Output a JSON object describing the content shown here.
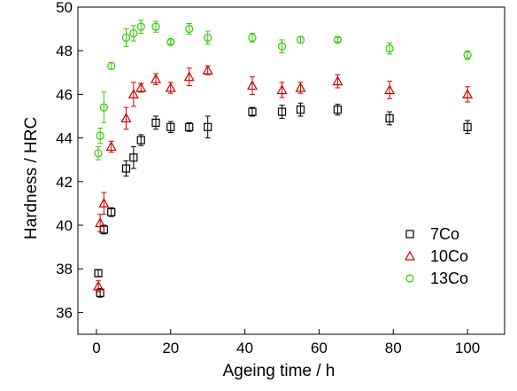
{
  "chart_data": {
    "type": "scatter",
    "xlabel": "Ageing time / h",
    "ylabel": "Hardness / HRC",
    "xlim": [
      -5,
      110
    ],
    "ylim": [
      35,
      50
    ],
    "xticks": [
      0,
      20,
      40,
      60,
      80,
      100
    ],
    "yticks": [
      36,
      38,
      40,
      42,
      44,
      46,
      48,
      50
    ],
    "grid": false,
    "legend": "bottom-right",
    "series": [
      {
        "name": "7Co",
        "marker": "square",
        "color": "#000000",
        "points": [
          {
            "x": 0.5,
            "y": 37.8,
            "err": 0.15
          },
          {
            "x": 1,
            "y": 36.9,
            "err": 0.2
          },
          {
            "x": 2,
            "y": 39.8,
            "err": 0.2
          },
          {
            "x": 4,
            "y": 40.6,
            "err": 0.2
          },
          {
            "x": 8,
            "y": 42.6,
            "err": 0.35
          },
          {
            "x": 10,
            "y": 43.1,
            "err": 0.5
          },
          {
            "x": 12,
            "y": 43.9,
            "err": 0.25
          },
          {
            "x": 16,
            "y": 44.7,
            "err": 0.3
          },
          {
            "x": 20,
            "y": 44.5,
            "err": 0.25
          },
          {
            "x": 25,
            "y": 44.5,
            "err": 0.2
          },
          {
            "x": 30,
            "y": 44.5,
            "err": 0.5
          },
          {
            "x": 42,
            "y": 45.2,
            "err": 0.2
          },
          {
            "x": 50,
            "y": 45.2,
            "err": 0.3
          },
          {
            "x": 55,
            "y": 45.3,
            "err": 0.3
          },
          {
            "x": 65,
            "y": 45.3,
            "err": 0.25
          },
          {
            "x": 79,
            "y": 44.9,
            "err": 0.3
          },
          {
            "x": 100,
            "y": 44.5,
            "err": 0.3
          }
        ]
      },
      {
        "name": "10Co",
        "marker": "triangle",
        "color": "#cc0000",
        "points": [
          {
            "x": 0.5,
            "y": 37.2,
            "err": 0.25
          },
          {
            "x": 1,
            "y": 40.1,
            "err": 0.4
          },
          {
            "x": 2,
            "y": 41.0,
            "err": 0.5
          },
          {
            "x": 4,
            "y": 43.6,
            "err": 0.25
          },
          {
            "x": 8,
            "y": 44.9,
            "err": 0.5
          },
          {
            "x": 10,
            "y": 46.0,
            "err": 0.55
          },
          {
            "x": 12,
            "y": 46.3,
            "err": 0.2
          },
          {
            "x": 16,
            "y": 46.7,
            "err": 0.25
          },
          {
            "x": 20,
            "y": 46.3,
            "err": 0.25
          },
          {
            "x": 25,
            "y": 46.8,
            "err": 0.4
          },
          {
            "x": 30,
            "y": 47.1,
            "err": 0.2
          },
          {
            "x": 42,
            "y": 46.4,
            "err": 0.4
          },
          {
            "x": 50,
            "y": 46.2,
            "err": 0.35
          },
          {
            "x": 55,
            "y": 46.3,
            "err": 0.25
          },
          {
            "x": 65,
            "y": 46.6,
            "err": 0.3
          },
          {
            "x": 79,
            "y": 46.2,
            "err": 0.4
          },
          {
            "x": 100,
            "y": 46.0,
            "err": 0.35
          }
        ]
      },
      {
        "name": "13Co",
        "marker": "circle",
        "color": "#33cc00",
        "points": [
          {
            "x": 0.5,
            "y": 43.3,
            "err": 0.3
          },
          {
            "x": 1,
            "y": 44.1,
            "err": 0.35
          },
          {
            "x": 2,
            "y": 45.4,
            "err": 0.7
          },
          {
            "x": 4,
            "y": 47.3,
            "err": 0.15
          },
          {
            "x": 8,
            "y": 48.6,
            "err": 0.4
          },
          {
            "x": 10,
            "y": 48.8,
            "err": 0.35
          },
          {
            "x": 12,
            "y": 49.1,
            "err": 0.3
          },
          {
            "x": 16,
            "y": 49.1,
            "err": 0.25
          },
          {
            "x": 20,
            "y": 48.4,
            "err": 0.1
          },
          {
            "x": 25,
            "y": 49.0,
            "err": 0.25
          },
          {
            "x": 30,
            "y": 48.6,
            "err": 0.3
          },
          {
            "x": 42,
            "y": 48.6,
            "err": 0.2
          },
          {
            "x": 50,
            "y": 48.2,
            "err": 0.3
          },
          {
            "x": 55,
            "y": 48.5,
            "err": 0.15
          },
          {
            "x": 65,
            "y": 48.5,
            "err": 0.1
          },
          {
            "x": 79,
            "y": 48.1,
            "err": 0.25
          },
          {
            "x": 100,
            "y": 47.8,
            "err": 0.2
          }
        ]
      }
    ]
  }
}
